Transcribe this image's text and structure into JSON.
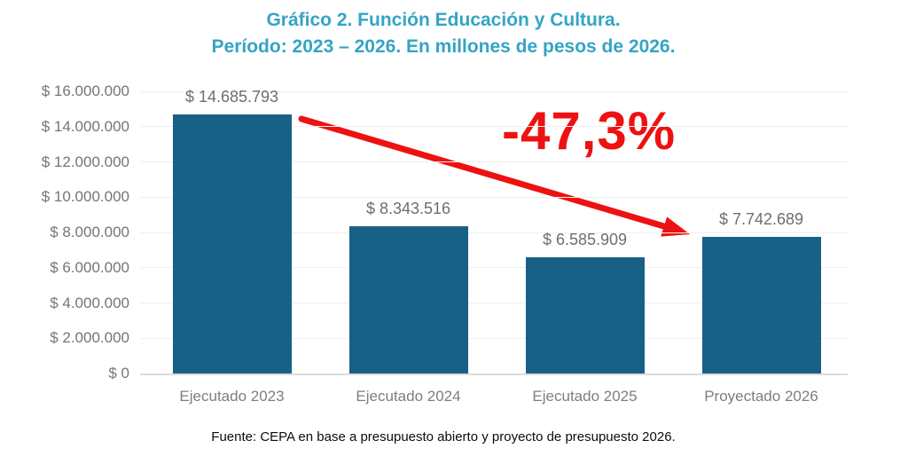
{
  "title": {
    "line1": "Gráfico 2. Función Educación y Cultura.",
    "line2": "Período: 2023 – 2026. En millones de pesos de 2026."
  },
  "source": "Fuente: CEPA en base a presupuesto abierto y proyecto de presupuesto 2026.",
  "colors": {
    "title": "#35a4c5",
    "bar": "#176187",
    "annotation": "#ee1111",
    "axis_text": "#757575",
    "grid": "#efefef"
  },
  "chart_data": {
    "type": "bar",
    "title": "Gráfico 2. Función Educación y Cultura. Período: 2023 – 2026. En millones de pesos de 2026.",
    "categories": [
      "Ejecutado 2023",
      "Ejecutado 2024",
      "Ejecutado 2025",
      "Proyectado 2026"
    ],
    "values": [
      14685793,
      8343516,
      6585909,
      7742689
    ],
    "value_labels": [
      "$ 14.685.793",
      "$ 8.343.516",
      "$ 6.585.909",
      "$ 7.742.689"
    ],
    "y_ticks": [
      {
        "value": 16000000,
        "label": "$ 16.000.000"
      },
      {
        "value": 14000000,
        "label": "$ 14.000.000"
      },
      {
        "value": 12000000,
        "label": "$ 12.000.000"
      },
      {
        "value": 10000000,
        "label": "$ 10.000.000"
      },
      {
        "value": 8000000,
        "label": "$ 8.000.000"
      },
      {
        "value": 6000000,
        "label": "$ 6.000.000"
      },
      {
        "value": 4000000,
        "label": "$ 4.000.000"
      },
      {
        "value": 2000000,
        "label": "$ 2.000.000"
      },
      {
        "value": 0,
        "label": "$ 0"
      }
    ],
    "ylim": [
      0,
      16000000
    ],
    "xlabel": "",
    "ylabel": "",
    "grid": true,
    "legend": false,
    "annotation": {
      "text": "-47,3%"
    }
  }
}
